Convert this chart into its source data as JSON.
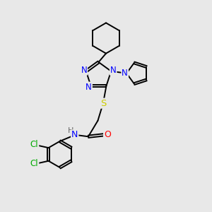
{
  "background_color": "#e8e8e8",
  "bond_color": "#000000",
  "atom_colors": {
    "N": "#0000ff",
    "O": "#ff0000",
    "S": "#cccc00",
    "Cl": "#00aa00",
    "H": "#666666",
    "C": "#000000"
  }
}
